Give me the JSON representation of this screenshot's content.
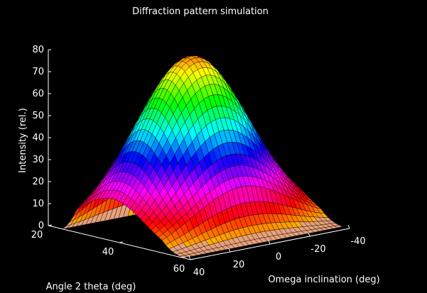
{
  "chart_data": {
    "type": "surface",
    "title": "Diffraction pattern simulation",
    "zlabel": "Intensity (rel.)",
    "xlabel": "Angle 2 theta (deg)",
    "ylabel": "Omega inclination (deg)",
    "zlim": [
      0,
      80
    ],
    "xlim": [
      20,
      60
    ],
    "ylim": [
      -40,
      40
    ],
    "z_ticks": [
      "0",
      "10",
      "20",
      "30",
      "40",
      "50",
      "60",
      "70",
      "80"
    ],
    "x_ticks": [
      "20",
      "40",
      "60"
    ],
    "y_ticks": [
      "40",
      "20",
      "0",
      "-20",
      "-40"
    ],
    "peak_intensity": 77,
    "peak_angle_2theta": 38,
    "peak_omega": 0,
    "grid": false,
    "colormap": "hsv",
    "background": "#000000",
    "axis_color": "#ffffff"
  }
}
